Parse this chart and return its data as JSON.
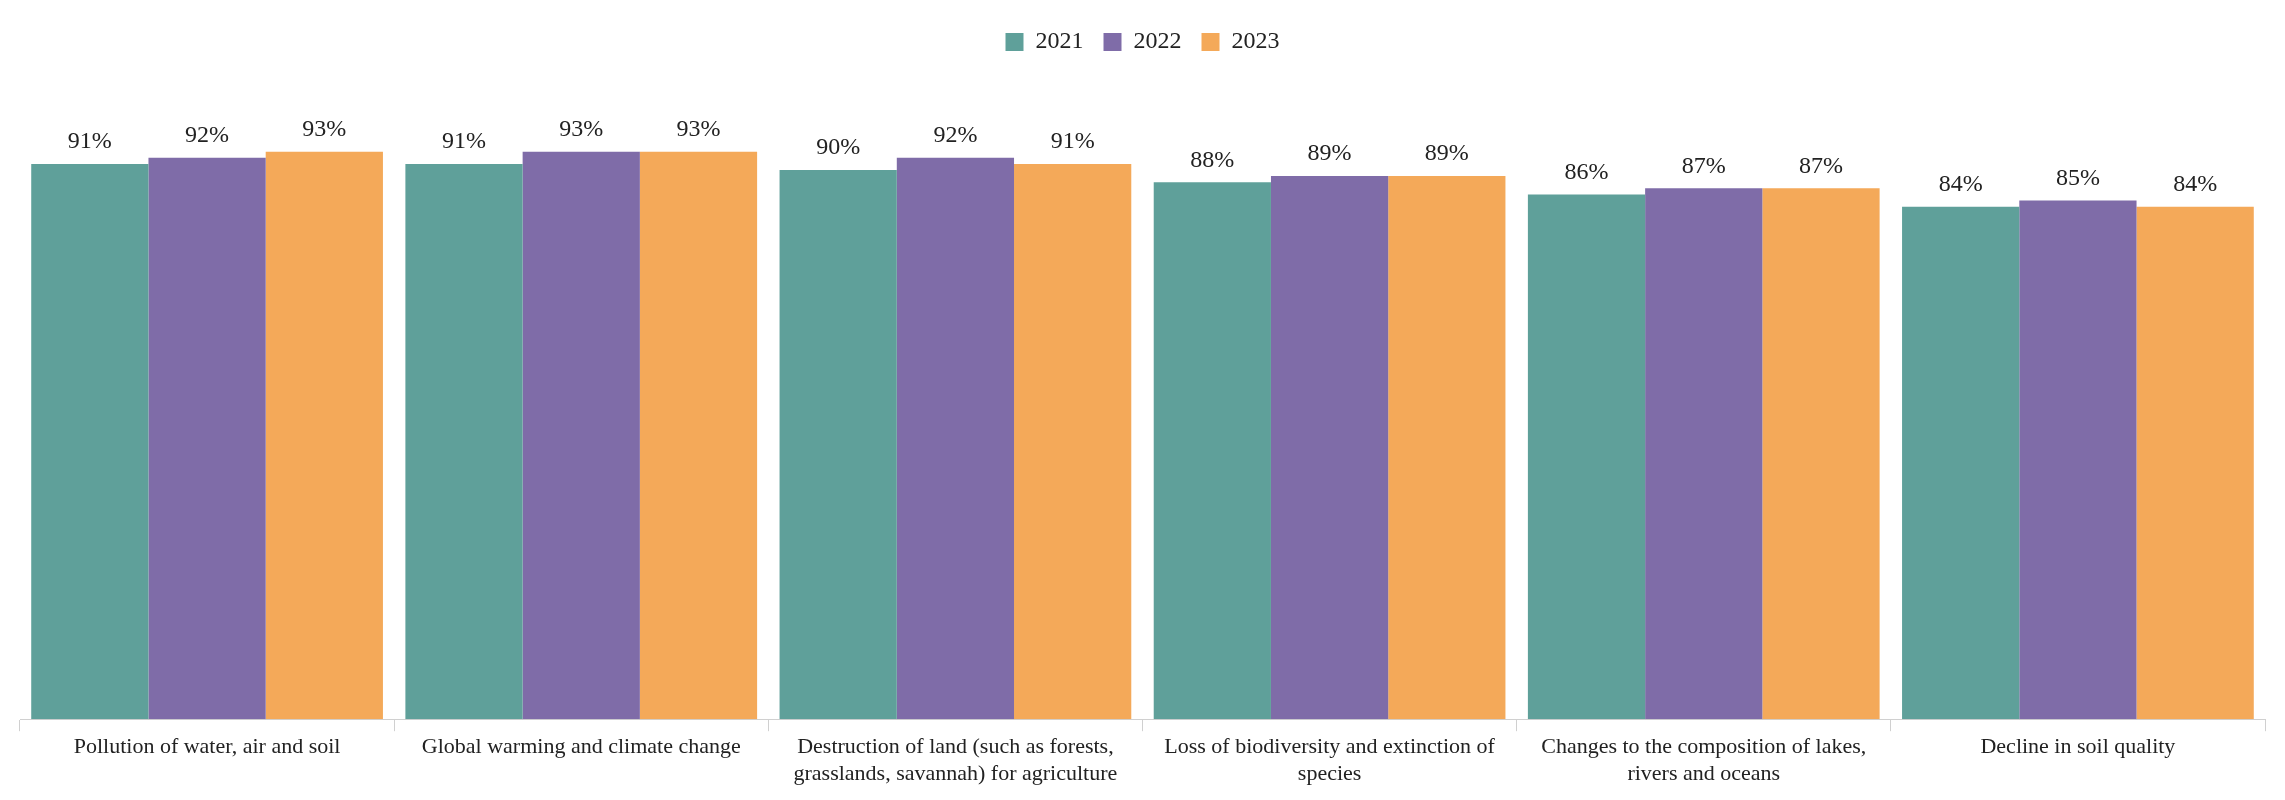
{
  "chart_data": {
    "type": "bar",
    "categories": [
      "Pollution of water, air and soil",
      "Global warming and climate change",
      "Destruction of land (such as forests, grasslands, savannah) for agriculture",
      "Loss of biodiversity and extinction of species",
      "Changes to the composition of lakes, rivers and oceans",
      "Decline in soil quality"
    ],
    "series": [
      {
        "name": "2021",
        "color": "#5fa09a",
        "values": [
          91,
          91,
          90,
          88,
          86,
          84
        ],
        "value_labels": [
          "91%",
          "91%",
          "90%",
          "88%",
          "86%",
          "84%"
        ]
      },
      {
        "name": "2022",
        "color": "#7f6ca8",
        "values": [
          92,
          93,
          92,
          89,
          87,
          85
        ],
        "value_labels": [
          "92%",
          "93%",
          "92%",
          "89%",
          "87%",
          "85%"
        ]
      },
      {
        "name": "2023",
        "color": "#f4a959",
        "values": [
          93,
          93,
          91,
          89,
          87,
          84
        ],
        "value_labels": [
          "93%",
          "93%",
          "91%",
          "89%",
          "87%",
          "84%"
        ]
      }
    ],
    "legend": "top"
  }
}
